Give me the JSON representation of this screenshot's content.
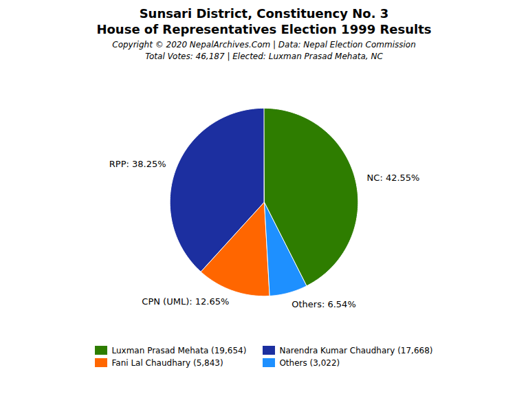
{
  "chart_data": {
    "type": "pie",
    "title": "Sunsari District, Constituency No. 3",
    "subtitle": "House of Representatives Election 1999 Results",
    "annotations": [
      "Copyright © 2020 NepalArchives.Com | Data: Nepal Election Commission",
      "Total Votes: 46,187 | Elected: Luxman Prasad Mehata, NC"
    ],
    "categories": [
      "NC",
      "Others",
      "CPN (UML)",
      "RPP"
    ],
    "values": [
      42.55,
      6.54,
      12.65,
      38.25
    ],
    "value_labels": [
      "NC: 42.55%",
      "Others: 6.54%",
      "CPN (UML): 12.65%",
      "RPP: 38.25%"
    ],
    "colors": [
      "#2E7D00",
      "#1E90FF",
      "#FF6600",
      "#1C2FA0"
    ],
    "data_labels": true,
    "legend": "bottom",
    "legend_entries": [
      {
        "label": "Luxman Prasad Mehata (19,654)",
        "color": "#2E7D00"
      },
      {
        "label": "Narendra Kumar Chaudhary (17,668)",
        "color": "#1C2FA0"
      },
      {
        "label": "Fani Lal Chaudhary (5,843)",
        "color": "#FF6600"
      },
      {
        "label": "Others (3,022)",
        "color": "#1E90FF"
      }
    ]
  }
}
